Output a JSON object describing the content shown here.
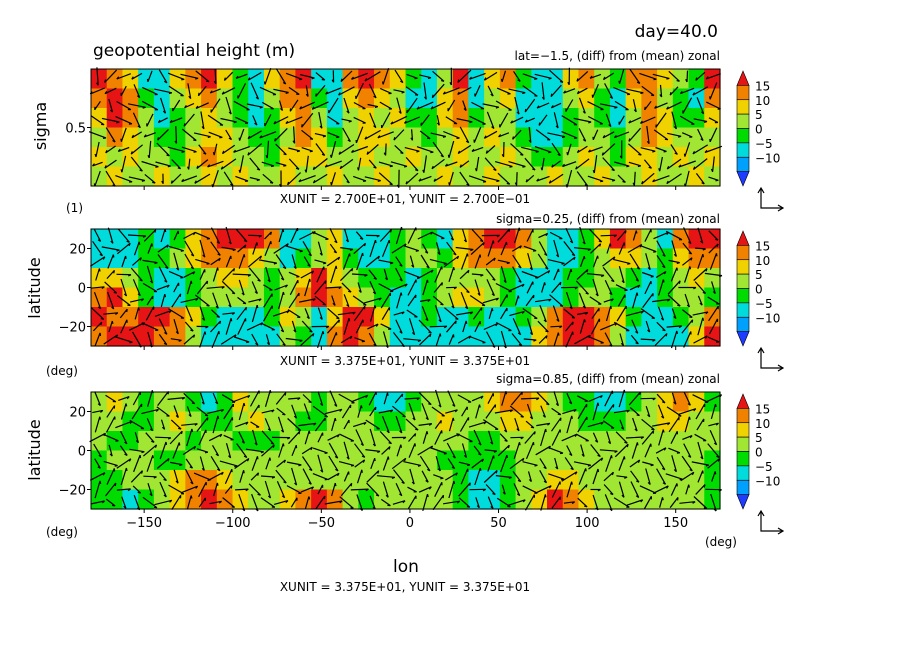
{
  "header": {
    "day": "day=40.0",
    "title": "geopotential height (m)"
  },
  "colorbar": {
    "labels": [
      "15",
      "10",
      "5",
      "0",
      "−5",
      "−10"
    ],
    "colors": [
      "#1e3cff",
      "#00a0ff",
      "#00dcdc",
      "#00dc00",
      "#a0e632",
      "#f0d200",
      "#f08200",
      "#e61414"
    ]
  },
  "chart_data": [
    {
      "type": "heatmap",
      "name": "lat-section",
      "subtitle": "lat=−1.5, (diff) from (mean) zonal",
      "ylabel": "sigma",
      "yunit_label": "(1)",
      "y_ticks": [
        {
          "value": 0.5,
          "label": "0.5"
        }
      ],
      "ylim": [
        1.0,
        0.0
      ],
      "xlim": [
        -180,
        175
      ],
      "vector_unit": "XUNIT = 2.700E+01, YUNIT = 2.700E−01",
      "color_range": [
        -10,
        15
      ],
      "rows": 6,
      "cols": 40,
      "values": [
        [
          15,
          12,
          5,
          -10,
          -8,
          5,
          10,
          15,
          5,
          -5,
          -10,
          5,
          12,
          15,
          -10,
          -8,
          10,
          15,
          12,
          5,
          -5,
          -10,
          0,
          15,
          -10,
          5,
          10,
          -5,
          -10,
          -10,
          5,
          10,
          0,
          -5,
          10,
          12,
          5,
          0,
          -5,
          15
        ],
        [
          10,
          15,
          10,
          -5,
          -10,
          0,
          5,
          10,
          0,
          -5,
          -10,
          0,
          10,
          12,
          -5,
          -10,
          5,
          10,
          5,
          0,
          -10,
          -8,
          5,
          12,
          -10,
          0,
          5,
          -10,
          -10,
          -8,
          0,
          5,
          -5,
          -10,
          5,
          10,
          0,
          -5,
          -10,
          10
        ],
        [
          5,
          15,
          12,
          0,
          -10,
          -5,
          0,
          5,
          0,
          -5,
          -10,
          -5,
          5,
          10,
          0,
          -10,
          0,
          5,
          0,
          5,
          -5,
          -5,
          5,
          10,
          -5,
          0,
          0,
          -10,
          -10,
          -10,
          -5,
          0,
          -5,
          -10,
          0,
          12,
          5,
          -5,
          -5,
          5
        ],
        [
          0,
          10,
          5,
          0,
          -5,
          -5,
          0,
          5,
          5,
          0,
          -5,
          -5,
          0,
          10,
          5,
          -5,
          0,
          5,
          5,
          0,
          0,
          -5,
          0,
          5,
          0,
          5,
          0,
          -5,
          -10,
          -10,
          -5,
          0,
          0,
          -5,
          0,
          10,
          5,
          0,
          0,
          0
        ],
        [
          5,
          0,
          5,
          0,
          0,
          -5,
          5,
          10,
          5,
          0,
          0,
          -5,
          5,
          5,
          5,
          0,
          0,
          5,
          0,
          0,
          5,
          0,
          0,
          5,
          0,
          0,
          5,
          0,
          -5,
          -5,
          0,
          5,
          0,
          -5,
          5,
          5,
          0,
          5,
          0,
          5
        ],
        [
          0,
          5,
          0,
          0,
          5,
          0,
          0,
          5,
          0,
          5,
          0,
          0,
          5,
          0,
          0,
          5,
          0,
          0,
          5,
          0,
          0,
          0,
          5,
          0,
          0,
          5,
          0,
          0,
          0,
          5,
          0,
          0,
          5,
          0,
          0,
          5,
          0,
          0,
          5,
          0
        ]
      ]
    },
    {
      "type": "heatmap",
      "name": "sigma-0.25",
      "subtitle": "sigma=0.25, (diff) from (mean) zonal",
      "ylabel": "latitude",
      "yunit_label": "(deg)",
      "y_ticks": [
        {
          "value": 20,
          "label": "20"
        },
        {
          "value": 0,
          "label": "0"
        },
        {
          "value": -20,
          "label": "−20"
        }
      ],
      "ylim": [
        -30,
        30
      ],
      "xlim": [
        -180,
        175
      ],
      "vector_unit": "XUNIT = 3.375E+01, YUNIT = 3.375E+01",
      "color_range": [
        -10,
        15
      ],
      "rows": 6,
      "cols": 40,
      "values": [
        [
          -10,
          -10,
          -10,
          -5,
          -10,
          -5,
          5,
          12,
          15,
          15,
          15,
          10,
          -10,
          -10,
          0,
          5,
          -10,
          -10,
          -10,
          -5,
          0,
          -5,
          -10,
          5,
          12,
          15,
          15,
          10,
          0,
          -10,
          -10,
          -5,
          5,
          15,
          12,
          0,
          -10,
          10,
          15,
          15
        ],
        [
          -10,
          -10,
          -8,
          -5,
          -5,
          0,
          5,
          10,
          12,
          10,
          5,
          0,
          -10,
          -5,
          0,
          5,
          -5,
          -10,
          -10,
          -5,
          0,
          0,
          -5,
          5,
          10,
          12,
          10,
          5,
          0,
          -10,
          -10,
          -5,
          0,
          5,
          5,
          0,
          -5,
          5,
          10,
          10
        ],
        [
          5,
          5,
          0,
          -5,
          -10,
          -10,
          -5,
          0,
          5,
          5,
          0,
          -5,
          0,
          5,
          15,
          5,
          0,
          -5,
          -5,
          -5,
          -10,
          -5,
          0,
          0,
          0,
          0,
          -5,
          -10,
          -10,
          -10,
          -5,
          -5,
          0,
          0,
          -5,
          -10,
          -5,
          0,
          5,
          0
        ],
        [
          10,
          15,
          5,
          -5,
          -10,
          -10,
          -5,
          0,
          0,
          0,
          0,
          -5,
          0,
          10,
          15,
          10,
          5,
          0,
          -5,
          -10,
          -10,
          -5,
          0,
          5,
          5,
          0,
          -5,
          -10,
          -10,
          -10,
          -5,
          0,
          0,
          -5,
          -10,
          -10,
          -5,
          0,
          0,
          -5
        ],
        [
          15,
          12,
          10,
          15,
          15,
          12,
          5,
          -5,
          -10,
          -10,
          -10,
          -5,
          5,
          0,
          -10,
          5,
          15,
          15,
          5,
          -10,
          -10,
          -5,
          -10,
          -10,
          -5,
          -10,
          -10,
          -5,
          0,
          10,
          15,
          15,
          12,
          5,
          -5,
          -10,
          -10,
          -5,
          0,
          10
        ],
        [
          10,
          15,
          15,
          15,
          12,
          10,
          0,
          -10,
          -10,
          -10,
          -10,
          -10,
          0,
          -5,
          -10,
          10,
          15,
          12,
          0,
          -10,
          -10,
          -10,
          -10,
          -10,
          -10,
          -10,
          -10,
          -10,
          5,
          12,
          15,
          15,
          10,
          0,
          -10,
          -10,
          -10,
          -10,
          5,
          15
        ]
      ]
    },
    {
      "type": "heatmap",
      "name": "sigma-0.85",
      "subtitle": "sigma=0.85, (diff) from (mean) zonal",
      "ylabel": "latitude",
      "yunit_label": "(deg)",
      "y_ticks": [
        {
          "value": 20,
          "label": "20"
        },
        {
          "value": 0,
          "label": "0"
        },
        {
          "value": -20,
          "label": "−20"
        }
      ],
      "ylim": [
        -30,
        30
      ],
      "xlim": [
        -180,
        175
      ],
      "vector_unit": "XUNIT = 3.375E+01, YUNIT = 3.375E+01",
      "color_range": [
        -10,
        15
      ],
      "rows": 6,
      "cols": 40,
      "values": [
        [
          0,
          5,
          0,
          -5,
          0,
          0,
          -5,
          -10,
          -5,
          5,
          0,
          0,
          0,
          0,
          -5,
          0,
          0,
          -5,
          -10,
          -10,
          -5,
          0,
          0,
          0,
          0,
          5,
          10,
          10,
          5,
          0,
          -5,
          -5,
          -10,
          -10,
          -5,
          0,
          5,
          10,
          5,
          -5
        ],
        [
          0,
          0,
          -5,
          -5,
          0,
          5,
          0,
          -5,
          -5,
          0,
          5,
          0,
          0,
          -5,
          -5,
          0,
          0,
          0,
          -5,
          -5,
          0,
          0,
          5,
          0,
          0,
          0,
          5,
          5,
          0,
          0,
          0,
          -5,
          -5,
          -5,
          0,
          0,
          5,
          5,
          0,
          0
        ],
        [
          0,
          -5,
          -5,
          0,
          0,
          0,
          -5,
          0,
          0,
          -5,
          -5,
          -5,
          0,
          0,
          0,
          0,
          0,
          0,
          0,
          0,
          0,
          0,
          0,
          0,
          -5,
          -5,
          0,
          0,
          0,
          0,
          0,
          0,
          0,
          0,
          0,
          0,
          0,
          0,
          0,
          0
        ],
        [
          -5,
          0,
          0,
          0,
          -5,
          -5,
          0,
          0,
          0,
          0,
          0,
          0,
          0,
          0,
          0,
          0,
          0,
          0,
          0,
          0,
          0,
          0,
          -5,
          -5,
          -5,
          -5,
          -5,
          0,
          0,
          0,
          0,
          0,
          0,
          0,
          0,
          0,
          0,
          0,
          0,
          -5
        ],
        [
          -5,
          -5,
          0,
          0,
          0,
          5,
          10,
          10,
          5,
          0,
          0,
          0,
          0,
          0,
          0,
          0,
          0,
          0,
          0,
          0,
          0,
          0,
          0,
          -5,
          -10,
          -10,
          -5,
          0,
          0,
          5,
          5,
          0,
          0,
          0,
          0,
          0,
          0,
          0,
          0,
          -5
        ],
        [
          -5,
          -5,
          -10,
          -5,
          0,
          5,
          10,
          15,
          10,
          5,
          0,
          0,
          5,
          10,
          15,
          10,
          0,
          -5,
          0,
          0,
          0,
          0,
          0,
          -5,
          -10,
          -10,
          -5,
          0,
          5,
          15,
          10,
          5,
          0,
          0,
          0,
          0,
          0,
          0,
          0,
          -5
        ]
      ]
    }
  ],
  "x_axis": {
    "ticks": [
      {
        "value": -150,
        "label": "−150"
      },
      {
        "value": -100,
        "label": "−100"
      },
      {
        "value": -50,
        "label": "−50"
      },
      {
        "value": 0,
        "label": "0"
      },
      {
        "value": 50,
        "label": "50"
      },
      {
        "value": 100,
        "label": "100"
      },
      {
        "value": 150,
        "label": "150"
      }
    ],
    "unit": "(deg)",
    "label": "lon",
    "vector_unit": "XUNIT = 3.375E+01, YUNIT = 3.375E+01"
  }
}
